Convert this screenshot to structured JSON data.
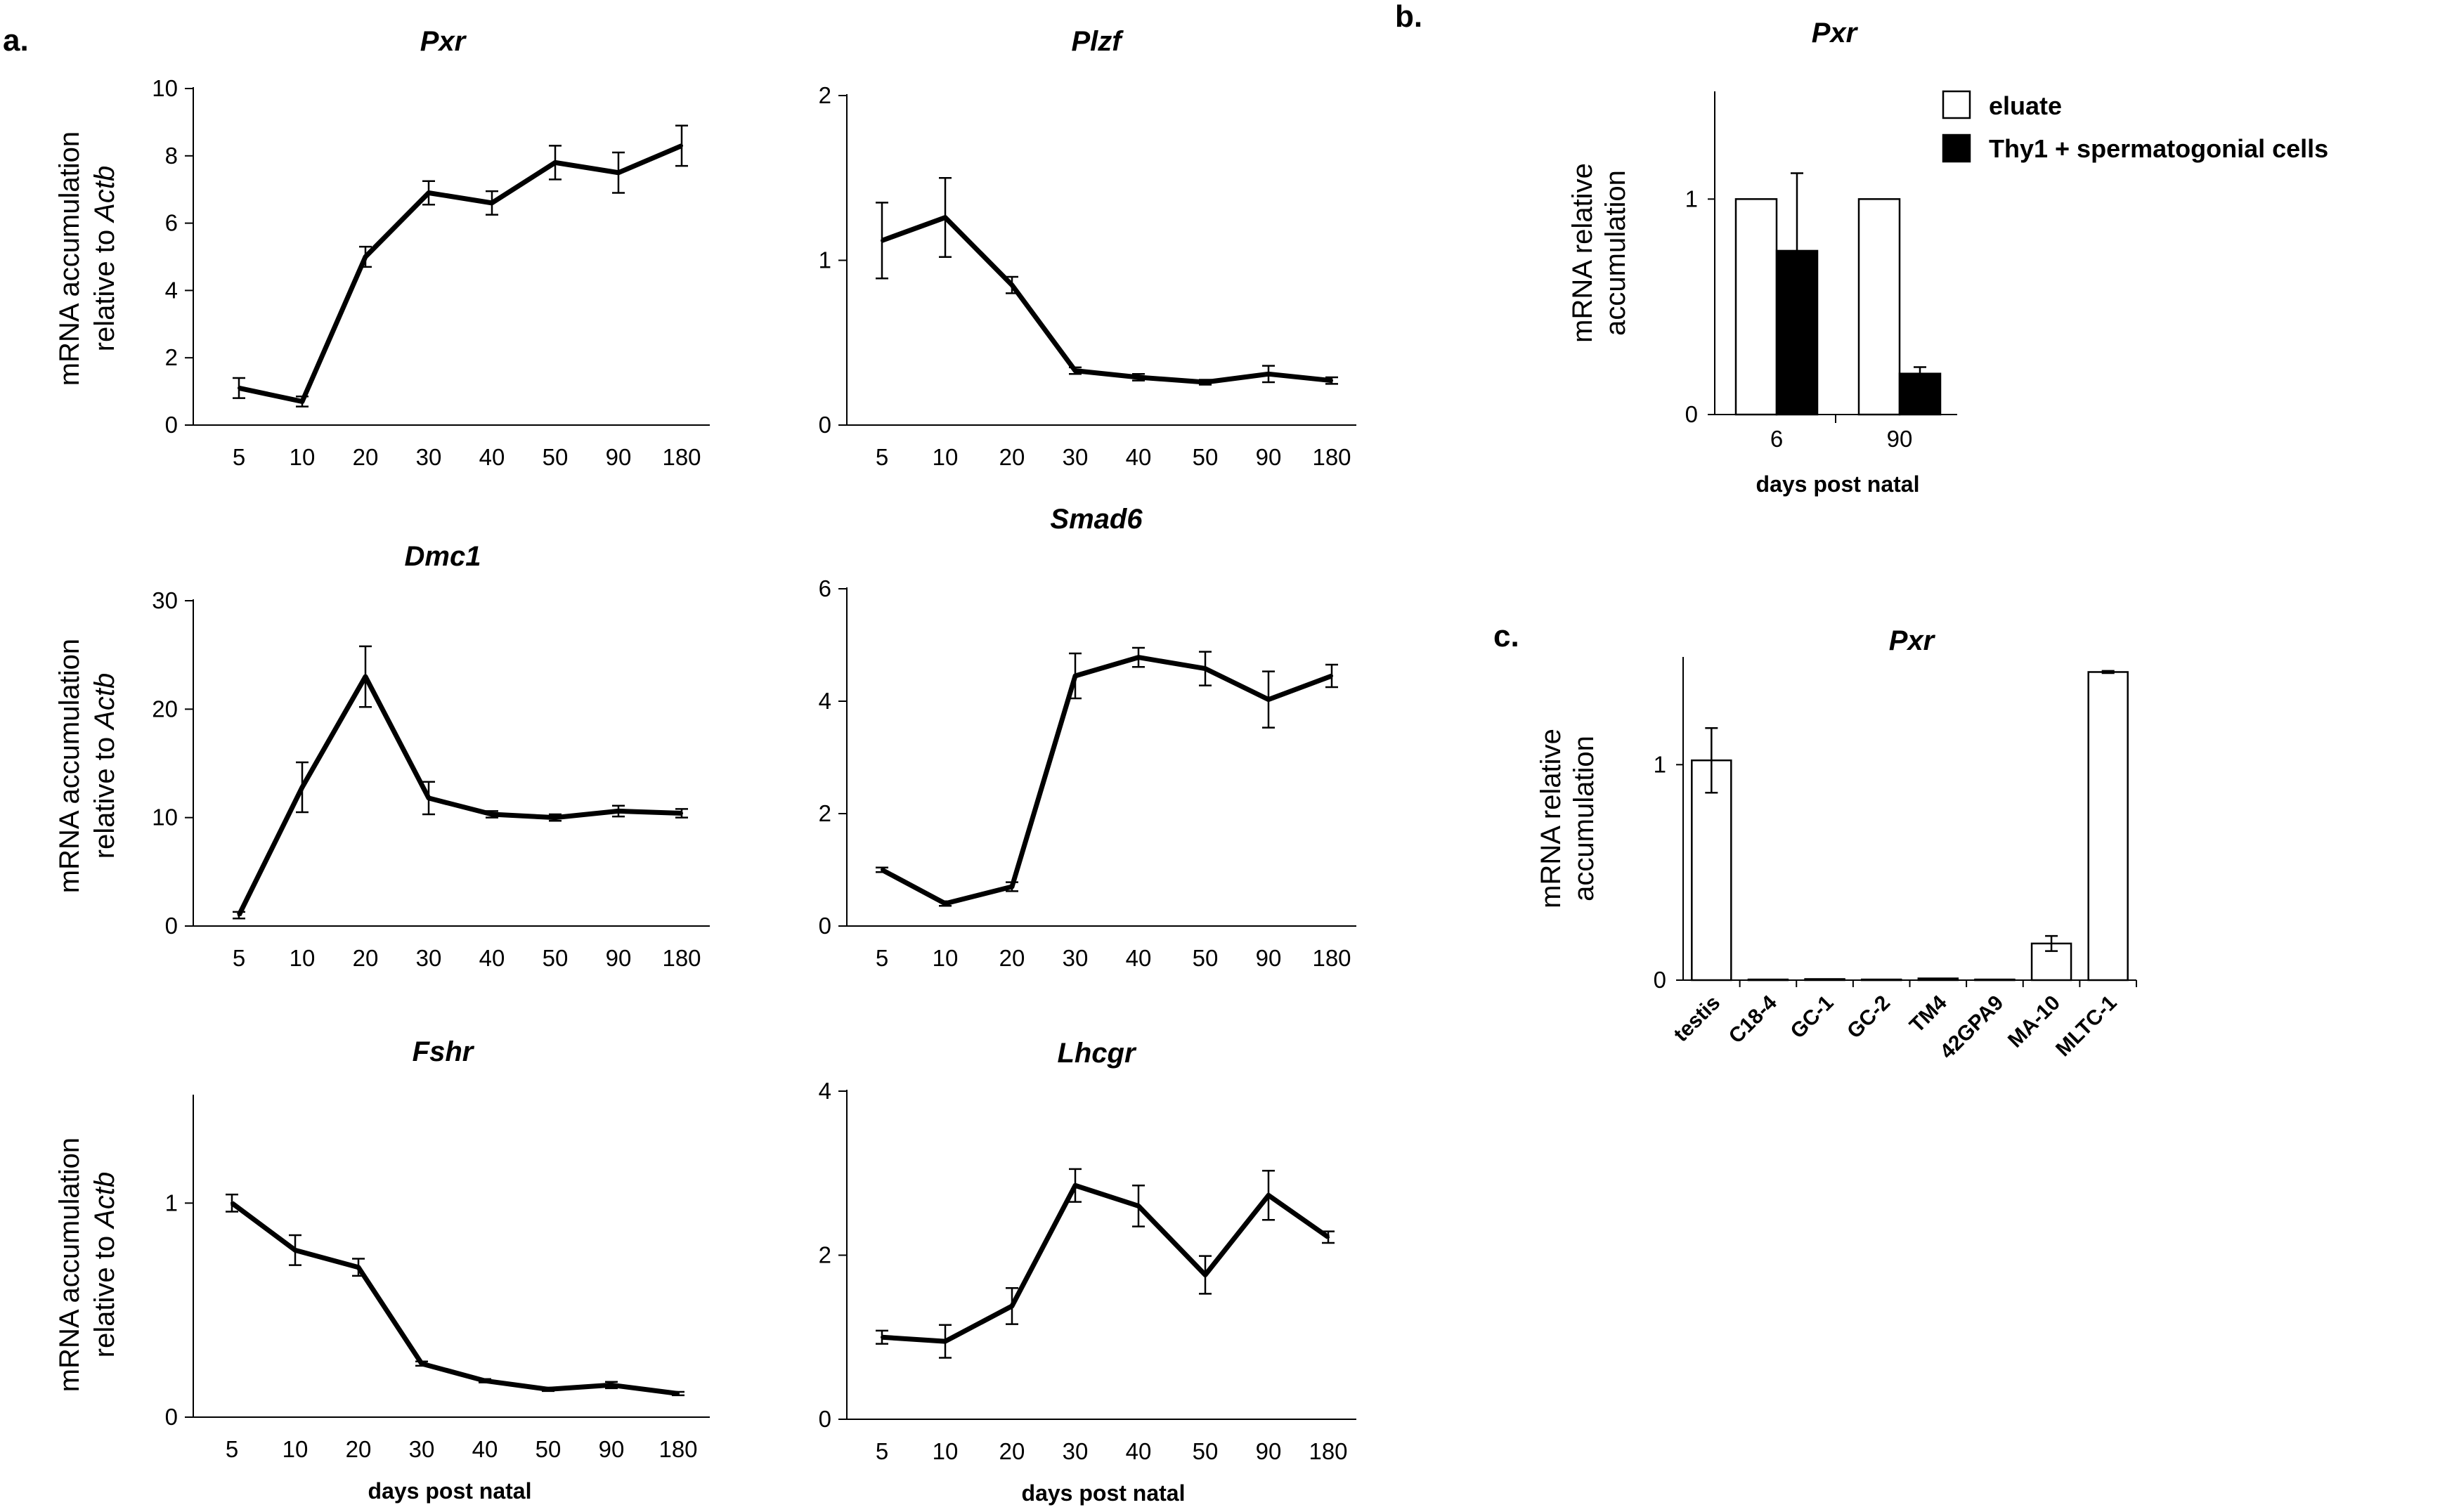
{
  "figure": {
    "panel_labels": [
      "a.",
      "b.",
      "c."
    ],
    "shared_ylabel_line1": "mRNA accumulation",
    "shared_ylabel_line2_prefix": "relative to ",
    "shared_ylabel_line2_gene": "Actb",
    "shared_xlabel": "days post natal"
  },
  "chart_data": [
    {
      "id": "pxr",
      "type": "line",
      "title": "Pxr",
      "categories": [
        "5",
        "10",
        "20",
        "30",
        "40",
        "50",
        "90",
        "180"
      ],
      "values": [
        1.1,
        0.7,
        5.0,
        6.9,
        6.6,
        7.8,
        7.5,
        8.3
      ],
      "errors": [
        0.3,
        0.15,
        0.3,
        0.35,
        0.35,
        0.5,
        0.6,
        0.6
      ],
      "ylim": [
        0,
        10
      ],
      "yticks": [
        "0",
        "2",
        "4",
        "6",
        "8",
        "10"
      ],
      "ytick_values": [
        0,
        2,
        4,
        6,
        8,
        10
      ],
      "ylabel": "mRNA accumulation relative to Actb",
      "xlabel": ""
    },
    {
      "id": "plzf",
      "type": "line",
      "title": "Plzf",
      "categories": [
        "5",
        "10",
        "20",
        "30",
        "40",
        "50",
        "90",
        "180"
      ],
      "values": [
        1.12,
        1.26,
        0.85,
        0.33,
        0.29,
        0.26,
        0.31,
        0.27
      ],
      "errors": [
        0.23,
        0.24,
        0.05,
        0.02,
        0.02,
        0.015,
        0.05,
        0.02
      ],
      "ylim": [
        0,
        2
      ],
      "yticks": [
        "0",
        "1",
        "2"
      ],
      "ytick_values": [
        0,
        1,
        2
      ],
      "ylabel": "",
      "xlabel": ""
    },
    {
      "id": "dmc1",
      "type": "line",
      "title": "Dmc1",
      "categories": [
        "5",
        "10",
        "20",
        "30",
        "40",
        "50",
        "90",
        "180"
      ],
      "values": [
        1.0,
        12.8,
        23.0,
        11.8,
        10.3,
        10.0,
        10.6,
        10.4
      ],
      "errors": [
        0.3,
        2.3,
        2.8,
        1.5,
        0.3,
        0.3,
        0.5,
        0.4
      ],
      "ylim": [
        0,
        30
      ],
      "yticks": [
        "0",
        "10",
        "20",
        "30"
      ],
      "ytick_values": [
        0,
        10,
        20,
        30
      ],
      "ylabel": "mRNA accumulation relative to Actb",
      "xlabel": ""
    },
    {
      "id": "smad6",
      "type": "line",
      "title": "Smad6",
      "categories": [
        "5",
        "10",
        "20",
        "30",
        "40",
        "50",
        "90",
        "180"
      ],
      "values": [
        1.0,
        0.4,
        0.7,
        4.45,
        4.78,
        4.58,
        4.03,
        4.45
      ],
      "errors": [
        0.04,
        0.04,
        0.08,
        0.4,
        0.17,
        0.3,
        0.5,
        0.2
      ],
      "ylim": [
        0,
        6
      ],
      "yticks": [
        "0",
        "2",
        "4",
        "6"
      ],
      "ytick_values": [
        0,
        2,
        4,
        6
      ],
      "ylabel": "",
      "xlabel": ""
    },
    {
      "id": "fshr",
      "type": "line",
      "title": "Fshr",
      "categories": [
        "5",
        "10",
        "20",
        "30",
        "40",
        "50",
        "90",
        "180"
      ],
      "values": [
        1.0,
        0.78,
        0.7,
        0.25,
        0.17,
        0.13,
        0.15,
        0.11
      ],
      "errors": [
        0.04,
        0.07,
        0.04,
        0.01,
        0.008,
        0.008,
        0.015,
        0.008
      ],
      "ylim": [
        0,
        1.5
      ],
      "yticks": [
        "0",
        "1"
      ],
      "ytick_values": [
        0,
        1
      ],
      "ylabel": "mRNA accumulation relative to Actb",
      "xlabel": "days post natal"
    },
    {
      "id": "lhcgr",
      "type": "line",
      "title": "Lhcgr",
      "categories": [
        "5",
        "10",
        "20",
        "30",
        "40",
        "50",
        "90",
        "180"
      ],
      "values": [
        1.0,
        0.95,
        1.38,
        2.85,
        2.6,
        1.76,
        2.73,
        2.22
      ],
      "errors": [
        0.08,
        0.2,
        0.22,
        0.2,
        0.25,
        0.23,
        0.3,
        0.07
      ],
      "ylim": [
        0,
        4
      ],
      "yticks": [
        "0",
        "2",
        "4"
      ],
      "ytick_values": [
        0,
        2,
        4
      ],
      "ylabel": "",
      "xlabel": "days post natal"
    },
    {
      "id": "pxr-b",
      "type": "bar",
      "title": "Pxr",
      "categories": [
        "6",
        "90"
      ],
      "series": [
        {
          "name": "eluate",
          "values": [
            1.0,
            1.0
          ],
          "errors": [
            0,
            0
          ],
          "color": "#ffffff"
        },
        {
          "name": "Thy1 + spermatogonial cells",
          "values": [
            0.76,
            0.19
          ],
          "errors": [
            0.36,
            0.03
          ],
          "color": "#000000"
        }
      ],
      "ylim": [
        0,
        1.5
      ],
      "yticks": [
        "0",
        "1"
      ],
      "ytick_values": [
        0,
        1
      ],
      "ylabel_line1": "mRNA relative",
      "ylabel_line2": "accumulation",
      "xlabel": "days post natal",
      "legend": [
        "eluate",
        "Thy1 + spermatogonial cells"
      ]
    },
    {
      "id": "pxr-c",
      "type": "bar",
      "title": "Pxr",
      "categories": [
        "testis",
        "C18-4",
        "GC-1",
        "GC-2",
        "TM4",
        "42GPA9",
        "MA-10",
        "MLTC-1"
      ],
      "values": [
        1.02,
        0.003,
        0.005,
        0.003,
        0.008,
        0.003,
        0.17,
        1.43
      ],
      "errors": [
        0.15,
        0.001,
        0.001,
        0.001,
        0.002,
        0.001,
        0.035,
        0.005
      ],
      "ylim": [
        0,
        1.5
      ],
      "yticks": [
        "0",
        "1"
      ],
      "ytick_values": [
        0,
        1
      ],
      "ylabel_line1": "mRNA relative",
      "ylabel_line2": "accumulation",
      "xlabel": ""
    }
  ]
}
